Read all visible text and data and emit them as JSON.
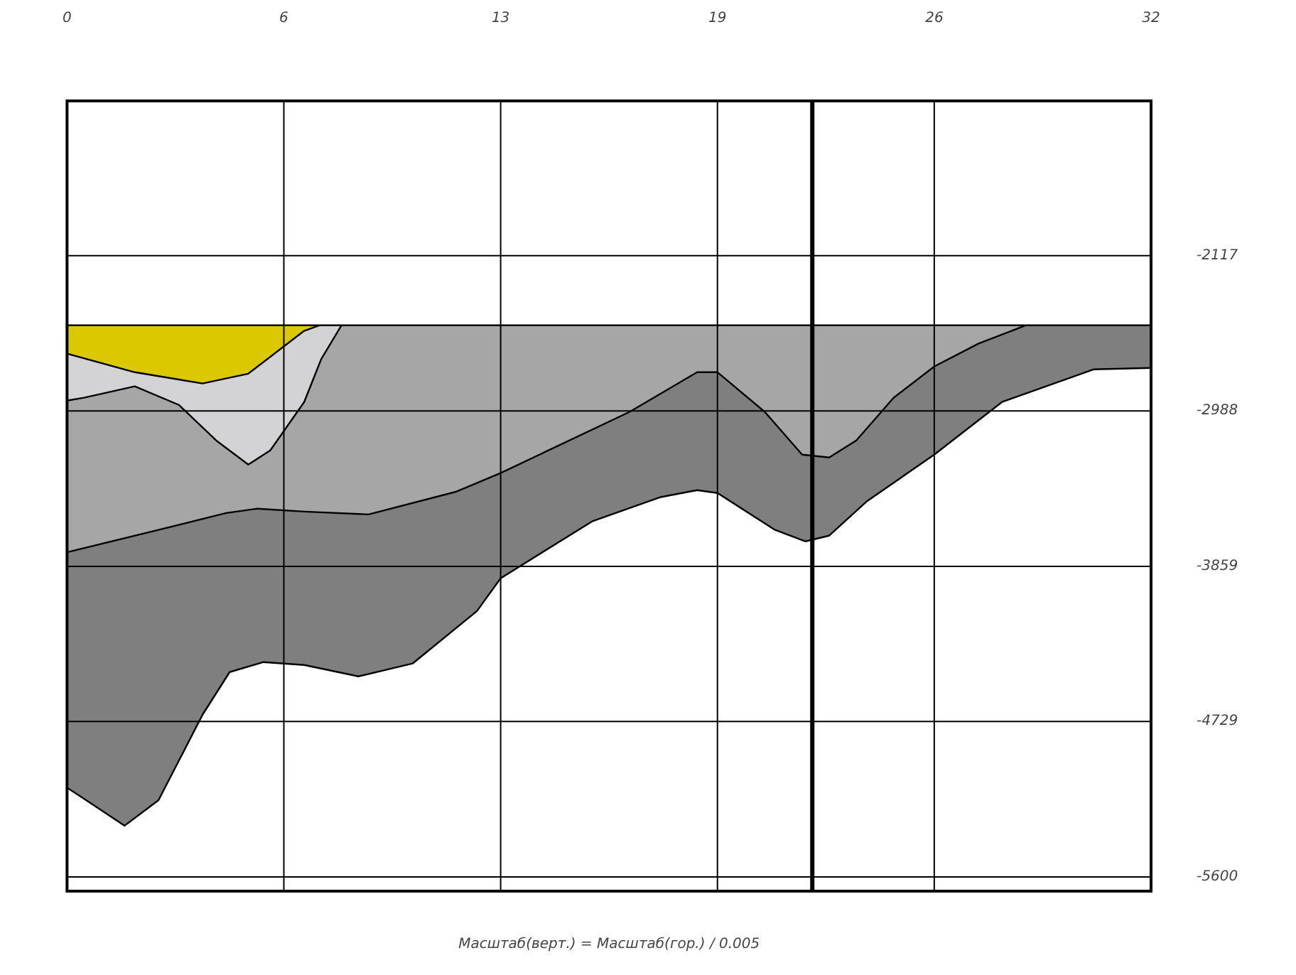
{
  "chart_data": {
    "type": "area",
    "series": [
      {
        "type": "line",
        "color": "#000000",
        "x": [
          0,
          32
        ],
        "values": [
          -2508,
          -2508
        ]
      },
      {
        "color": "#dcc800",
        "x": [
          0,
          2,
          4,
          5.35,
          7,
          7.45
        ],
        "values": [
          -2667,
          -2771,
          -2834,
          -2779,
          -2539,
          -2508
        ]
      },
      {
        "color": "#d3d3d5",
        "x": [
          0,
          0.5,
          2,
          3.3,
          4.4,
          5.35,
          6,
          7,
          7.5,
          8.1
        ],
        "values": [
          -2930,
          -2914,
          -2850,
          -2954,
          -3153,
          -3289,
          -3209,
          -2938,
          -2699,
          -2508
        ]
      },
      {
        "color": "#a6a6a6",
        "x": [
          0,
          2.7,
          4.7,
          5.6,
          7,
          8.9,
          11.5,
          12.8,
          16.6,
          18.6,
          19.2,
          20.6,
          21.7,
          22.5,
          23.3,
          24.4,
          25.6,
          26.9,
          28.3
        ],
        "values": [
          -3780,
          -3655,
          -3560,
          -3536,
          -3552,
          -3568,
          -3440,
          -3336,
          -2994,
          -2771,
          -2771,
          -2994,
          -3233,
          -3249,
          -3153,
          -2914,
          -2739,
          -2611,
          -2508
        ]
      },
      {
        "color": "#7f7f7f",
        "x": [
          0,
          0.5,
          1.7,
          2.7,
          4,
          4.8,
          5.8,
          7,
          8.6,
          10.2,
          12.1,
          12.8,
          15.5,
          17.5,
          18.6,
          19.2,
          20.9,
          21.8,
          22.5,
          23.6,
          25.6,
          27.6,
          28.9,
          30.3,
          32
        ],
        "values": [
          -5100,
          -5162,
          -5313,
          -5170,
          -4691,
          -4452,
          -4396,
          -4412,
          -4476,
          -4404,
          -4110,
          -3926,
          -3607,
          -3472,
          -3432,
          -3448,
          -3655,
          -3719,
          -3687,
          -3496,
          -3233,
          -2938,
          -2850,
          -2755,
          -2747
        ]
      }
    ],
    "xlim": [
      0,
      32
    ],
    "xticks": [
      0,
      {
        "value": 6.4,
        "label": "6"
      },
      {
        "value": 12.8,
        "label": "13"
      },
      {
        "value": 19.2,
        "label": "19"
      },
      {
        "value": 25.6,
        "label": "26"
      },
      32
    ],
    "ylim": [
      -5680,
      -1250
    ],
    "yticks": [
      -2117,
      -2988,
      -3859,
      -4729,
      -5600
    ],
    "ref_lines": [
      {
        "axis": "x",
        "value": 22
      }
    ],
    "grid": true,
    "annotations": [
      "Масштаб(верт.) = Масштаб(гор.) / 0.005"
    ]
  }
}
